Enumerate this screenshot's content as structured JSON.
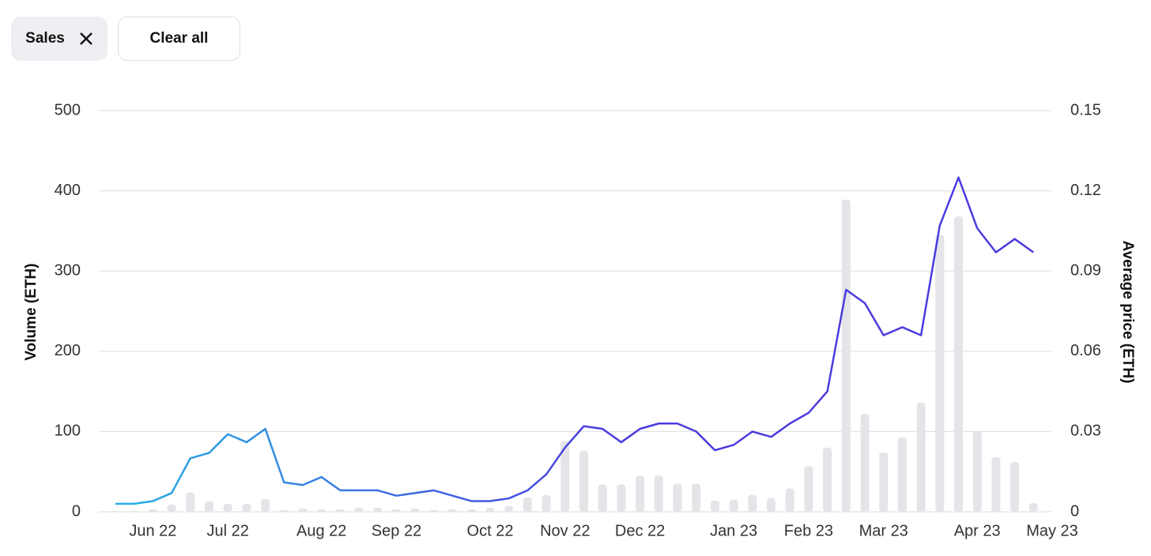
{
  "filters": {
    "active": "Sales",
    "clear": "Clear all"
  },
  "chart_data": {
    "type": "combo",
    "y_label": "Volume (ETH)",
    "y2_label": "Average price (ETH)",
    "categories": [
      null,
      null,
      "Jun 22",
      null,
      null,
      null,
      "Jul 22",
      null,
      null,
      null,
      null,
      "Aug 22",
      null,
      null,
      null,
      "Sep 22",
      null,
      null,
      null,
      null,
      "Oct 22",
      null,
      null,
      null,
      "Nov 22",
      null,
      null,
      null,
      "Dec 22",
      null,
      null,
      null,
      null,
      "Jan 23",
      null,
      null,
      null,
      "Feb 23",
      null,
      null,
      null,
      "Mar 23",
      null,
      null,
      null,
      null,
      "Apr 23",
      null,
      null,
      null,
      "May 23"
    ],
    "series": [
      {
        "type": "bar",
        "color": "#e4e4e9",
        "values": [
          1,
          1,
          3,
          9,
          24,
          13,
          10,
          10,
          16,
          2,
          4,
          3,
          3,
          5,
          5,
          3,
          4,
          2,
          3,
          3,
          5,
          7,
          18,
          21,
          88,
          76,
          34,
          34,
          45,
          45,
          35,
          35,
          14,
          15,
          21,
          17,
          29,
          57,
          80,
          389,
          122,
          74,
          93,
          136,
          345,
          368,
          100,
          68,
          62,
          11,
          null
        ]
      },
      {
        "type": "line",
        "axis": "y2",
        "color": "#4b3be0",
        "gradient_start": "#27b1e6",
        "values": [
          0.003,
          0.003,
          0.004,
          0.007,
          0.02,
          0.022,
          0.029,
          0.026,
          0.031,
          0.011,
          0.01,
          0.013,
          0.008,
          0.008,
          0.008,
          0.006,
          0.007,
          0.008,
          0.006,
          0.004,
          0.004,
          0.005,
          0.008,
          0.014,
          0.024,
          0.032,
          0.031,
          0.026,
          0.031,
          0.033,
          0.033,
          0.03,
          0.023,
          0.025,
          0.03,
          0.028,
          0.033,
          0.037,
          0.045,
          0.083,
          0.078,
          0.066,
          0.069,
          0.066,
          0.107,
          0.125,
          0.106,
          0.097,
          0.102,
          0.097,
          null
        ]
      }
    ],
    "ylim": [
      0,
      500
    ],
    "yticks": [
      0,
      100,
      200,
      300,
      400,
      500
    ],
    "y2lim": [
      0,
      0.15
    ],
    "y2ticks": [
      0,
      0.03,
      0.06,
      0.09,
      0.12,
      0.15
    ],
    "grid": true
  }
}
